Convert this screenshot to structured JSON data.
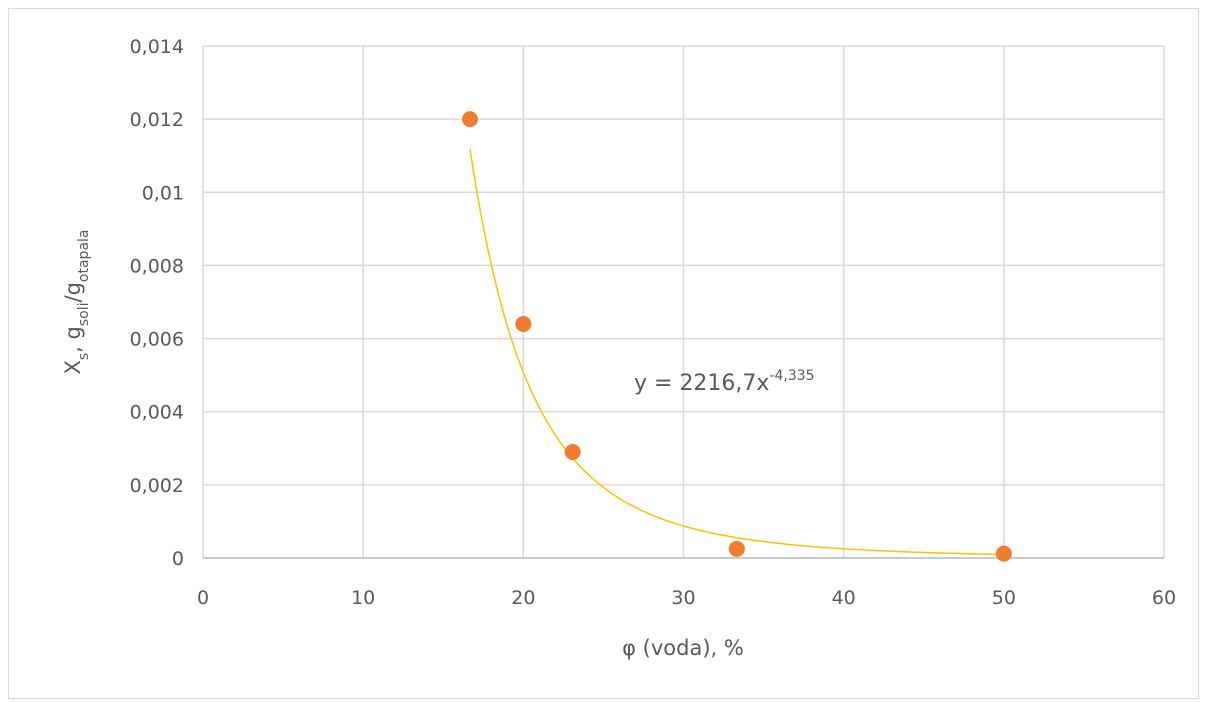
{
  "chart_data": {
    "type": "scatter",
    "x": [
      16.67,
      20,
      23.08,
      33.33,
      50
    ],
    "values": [
      0.012,
      0.0064,
      0.0029,
      0.00025,
      0.00012
    ],
    "color": "#ed7d31",
    "xlim": [
      0,
      60
    ],
    "xticks": [
      0,
      10,
      20,
      30,
      40,
      50,
      60
    ],
    "ylim": [
      0,
      0.014
    ],
    "yticks": [
      0,
      {
        "value": 0.002,
        "label": "0,002"
      },
      {
        "value": 0.004,
        "label": "0,004"
      },
      {
        "value": 0.006,
        "label": "0,006"
      },
      {
        "value": 0.008,
        "label": "0,008"
      },
      {
        "value": 0.01,
        "label": "0,01"
      },
      {
        "value": 0.012,
        "label": "0,012"
      },
      {
        "value": 0.014,
        "label": "0,014"
      }
    ],
    "grid": true,
    "xlabel": "φ (voda), %",
    "ylabel": [
      "X",
      "s",
      ", g",
      "soli",
      "/g",
      "otapala"
    ],
    "trendline": {
      "type": "power",
      "a": 2216.7,
      "b": -4.335,
      "color": "#ffc000",
      "label": "y = 2216,7x",
      "label_exp": "-4,335"
    }
  }
}
